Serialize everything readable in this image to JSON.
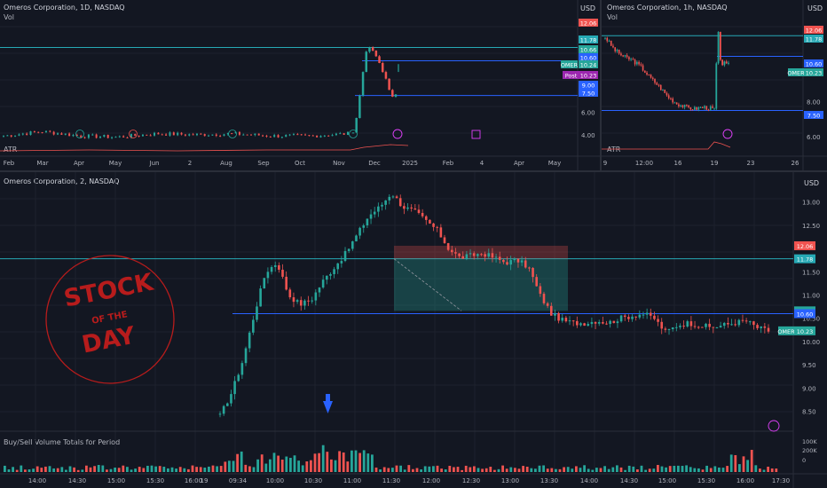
{
  "colors": {
    "background": "#131722",
    "grid": "#1e222d",
    "up": "#26a69a",
    "down": "#ef5350",
    "level_cyan": "#26a9b5",
    "level_blue": "#2962ff",
    "stamp_red": "#b71c1c",
    "text": "#b2b5be"
  },
  "daily_panel": {
    "title": "Omeros Corporation, 1D, NASDAQ",
    "sub": "Vol",
    "indicator": "ATR",
    "currency": "USD",
    "y_ticks": [
      "6.00",
      "4.00"
    ],
    "price_labels": [
      {
        "text": "12.06",
        "color": "#ef5350"
      },
      {
        "text": "11.78",
        "color": "#26a9b5"
      },
      {
        "text": "10.66",
        "color": "#26a69a"
      },
      {
        "text": "10.60",
        "color": "#2962ff"
      },
      {
        "text": "OMER",
        "color": "#26a69a"
      },
      {
        "text": "10.24",
        "color": "#26a69a"
      },
      {
        "text": "Post",
        "color": "#9c27b0"
      },
      {
        "text": "10.23",
        "color": "#9c27b0"
      },
      {
        "text": "9.00",
        "color": "#2962ff"
      },
      {
        "text": "7.50",
        "color": "#2962ff"
      }
    ],
    "x_ticks": [
      "Feb",
      "Mar",
      "Apr",
      "May",
      "Jun",
      "2",
      "Aug",
      "Sep",
      "Oct",
      "Nov",
      "Dec",
      "2025",
      "Feb",
      "4",
      "Apr",
      "May"
    ]
  },
  "hourly_panel": {
    "title": "Omeros Corporation, 1h, NASDAQ",
    "sub": "Vol",
    "indicator": "ATR",
    "currency": "USD",
    "y_ticks": [
      "8.00",
      "6.00"
    ],
    "price_labels": [
      {
        "text": "12.06",
        "color": "#ef5350"
      },
      {
        "text": "11.78",
        "color": "#26a9b5"
      },
      {
        "text": "10.60",
        "color": "#2962ff"
      },
      {
        "text": "OMER",
        "color": "#26a69a"
      },
      {
        "text": "10.23",
        "color": "#26a69a"
      },
      {
        "text": "7.50",
        "color": "#2962ff"
      }
    ],
    "x_ticks": [
      "9",
      "12:00",
      "16",
      "19",
      "23",
      "26"
    ]
  },
  "main_panel": {
    "title": "Omeros Corporation, 2, NASDAQ",
    "currency": "USD",
    "indicator": "Buy/Sell Volume Totals for Period",
    "y_ticks": [
      "13.00",
      "12.50",
      "11.50",
      "11.00",
      "10.50",
      "10.00",
      "9.50",
      "9.00",
      "8.50"
    ],
    "price_labels": [
      {
        "text": "12.06",
        "color": "#ef5350"
      },
      {
        "text": "11.78",
        "color": "#26a9b5"
      },
      {
        "text": "10.66",
        "color": "#26a69a"
      },
      {
        "text": "10.60",
        "color": "#2962ff"
      },
      {
        "text": "OMER",
        "color": "#26a69a"
      },
      {
        "text": "10.23",
        "color": "#26a69a"
      }
    ],
    "vol_ticks": [
      "200K",
      "100K",
      "0"
    ],
    "x_ticks": [
      "14:00",
      "14:30",
      "15:00",
      "15:30",
      "16:00",
      "19",
      "09:34",
      "10:00",
      "10:30",
      "11:00",
      "11:30",
      "12:00",
      "12:30",
      "13:00",
      "13:30",
      "14:00",
      "14:30",
      "15:00",
      "15:30",
      "16:00",
      "17:30"
    ]
  },
  "stamp": {
    "line1": "STOCK",
    "line2": "OF THE",
    "line3": "DAY"
  },
  "chart_data": [
    {
      "type": "candlestick",
      "title": "Omeros Corporation, 1D, NASDAQ",
      "x": [
        "Feb",
        "Mar",
        "Apr",
        "May",
        "Jun",
        "2",
        "Aug",
        "Sep",
        "Oct",
        "Nov",
        "Dec",
        "2025"
      ],
      "approx_close": [
        3.9,
        4.2,
        3.9,
        3.8,
        4.0,
        4.1,
        4.0,
        3.9,
        3.9,
        4.0,
        10.6,
        10.24
      ],
      "horizontal_levels": [
        11.78,
        10.6,
        7.5
      ],
      "last_price": 10.24
    },
    {
      "type": "candlestick",
      "title": "Omeros Corporation, 1h, NASDAQ",
      "x": [
        "9",
        "12:00",
        "16",
        "19"
      ],
      "approx_close": [
        11.5,
        10.0,
        8.0,
        10.23
      ],
      "horizontal_levels": [
        11.78,
        10.6,
        7.5
      ],
      "last_price": 10.23
    },
    {
      "type": "candlestick",
      "title": "Omeros Corporation, 2, NASDAQ",
      "x": [
        "09:34",
        "10:00",
        "10:30",
        "11:00",
        "11:30",
        "12:00",
        "12:30",
        "13:00",
        "13:30",
        "14:00",
        "14:30",
        "15:00",
        "15:30",
        "16:00"
      ],
      "approx_close": [
        11.6,
        10.9,
        12.3,
        12.9,
        12.0,
        11.8,
        11.6,
        10.4,
        10.45,
        10.6,
        10.35,
        10.35,
        10.4,
        10.23
      ],
      "horizontal_levels": [
        11.78,
        10.6
      ],
      "short_position": {
        "entry": 11.78,
        "stop": 12.06,
        "target": 10.66
      },
      "last_price": 10.23,
      "ylim": [
        8.3,
        13.3
      ]
    }
  ]
}
